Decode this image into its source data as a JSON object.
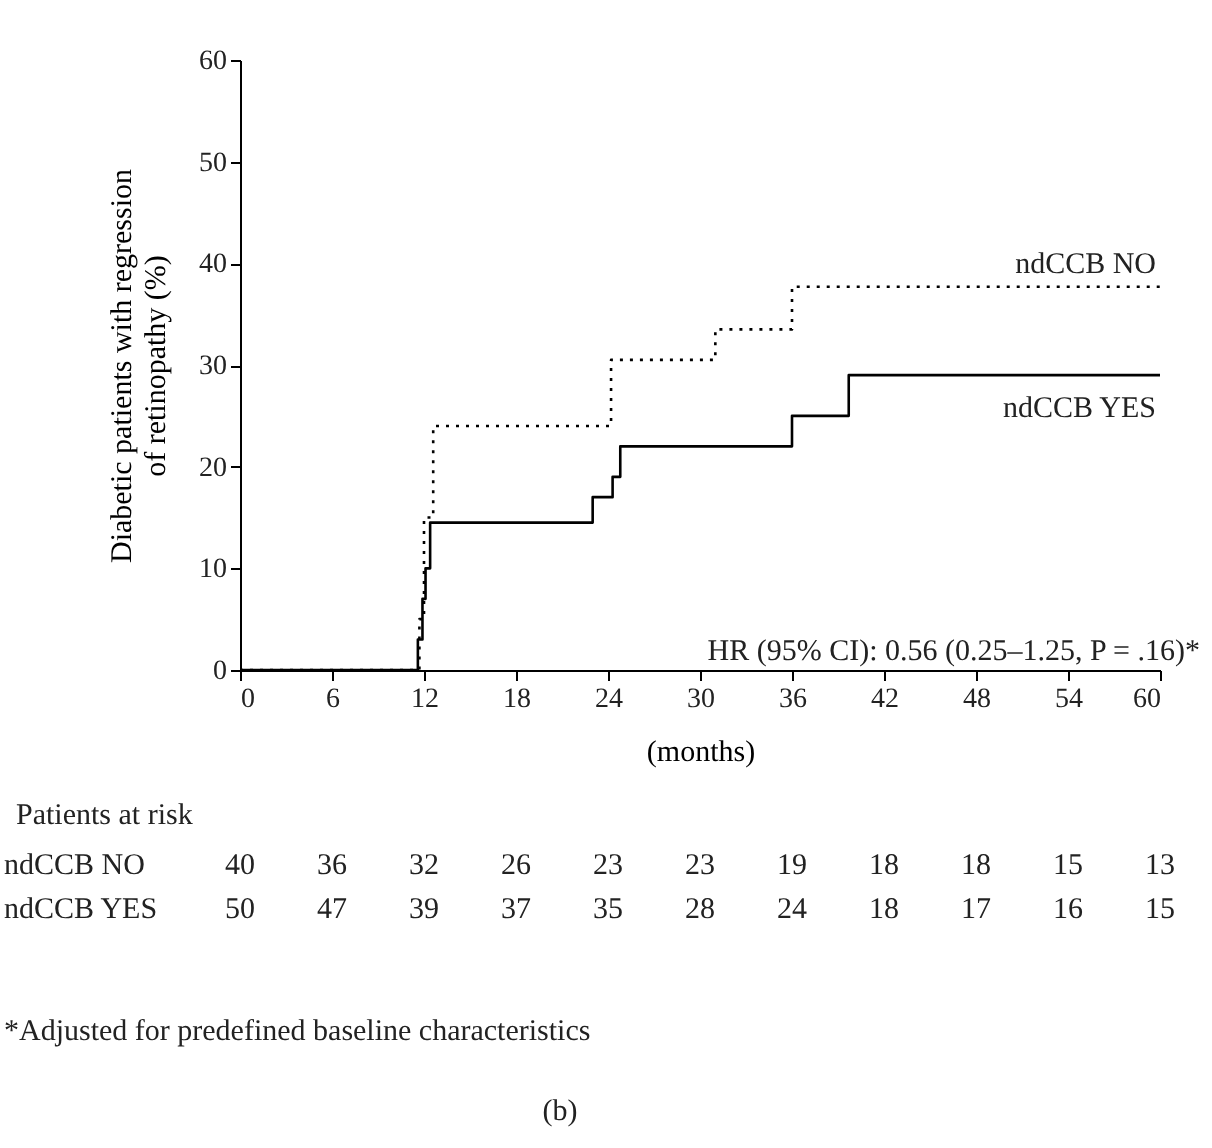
{
  "chart_data": {
    "type": "step",
    "xlabel": "(months)",
    "ylabel": "Diabetic patients with regression\nof retinopathy (%)",
    "series": [
      {
        "name": "ndCCB NO",
        "color": "#000000",
        "line_style": "dotted",
        "x": [
          0,
          11.7,
          12,
          12.6,
          24.2,
          31,
          36,
          60
        ],
        "values": [
          0,
          5,
          15,
          24,
          30.5,
          33.5,
          37.7,
          37.7
        ]
      },
      {
        "name": "ndCCB YES",
        "color": "#000000",
        "line_style": "solid",
        "x": [
          0,
          11.6,
          11.9,
          12.1,
          12.4,
          23,
          24.3,
          24.8,
          36,
          39.7,
          60
        ],
        "values": [
          0,
          3,
          7,
          10,
          14.5,
          17,
          19,
          22,
          25,
          29,
          29
        ]
      }
    ],
    "xlim": [
      0,
      60
    ],
    "xticks": [
      0,
      6,
      12,
      18,
      24,
      30,
      36,
      42,
      48,
      54,
      60
    ],
    "ylim": [
      0,
      60
    ],
    "yticks": [
      0,
      10,
      20,
      30,
      40,
      50,
      60
    ],
    "grid": false,
    "legend": false,
    "annotations": [
      "HR (95% CI): 0.56 (0.25–1.25, P = .16)*",
      "Patients at risk",
      "ndCCB NO 40 36 32 26 23 23 19 18 18 15 13",
      "ndCCB YES 50 47 39 37 35 28 24 18 17 16 15",
      "*Adjusted for predefined baseline characteristics",
      "(b)"
    ]
  }
}
